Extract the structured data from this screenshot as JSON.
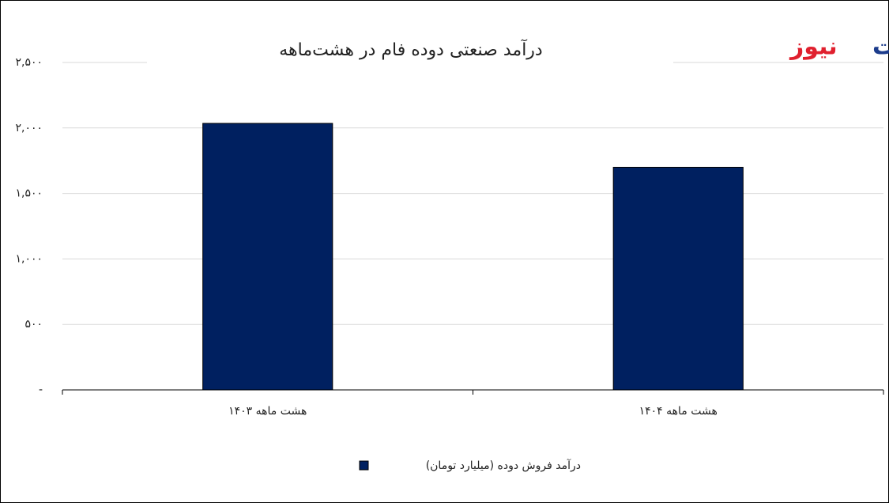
{
  "chart_data": {
    "type": "bar",
    "title": "درآمد صنعتی دوده فام در هشت‌ماهه",
    "logo": [
      "تجارت",
      "نیوز"
    ],
    "categories": [
      "هشت ماهه ۱۴۰۳",
      "هشت ماهه ۱۴۰۴"
    ],
    "series": [
      {
        "name": "درآمد  فروش دوده (میلیارد تومان)",
        "color": "#002060",
        "values": [
          2035,
          1700
        ]
      }
    ],
    "ylim": [
      0,
      2500
    ],
    "yticks": [
      {
        "value": 0,
        "label": "-"
      },
      {
        "value": 500,
        "label": "۵۰۰"
      },
      {
        "value": 1000,
        "label": "۱,۰۰۰"
      },
      {
        "value": 1500,
        "label": "۱,۵۰۰"
      },
      {
        "value": 2000,
        "label": "۲,۰۰۰"
      },
      {
        "value": 2500,
        "label": "۲,۵۰۰"
      }
    ],
    "grid": true
  }
}
